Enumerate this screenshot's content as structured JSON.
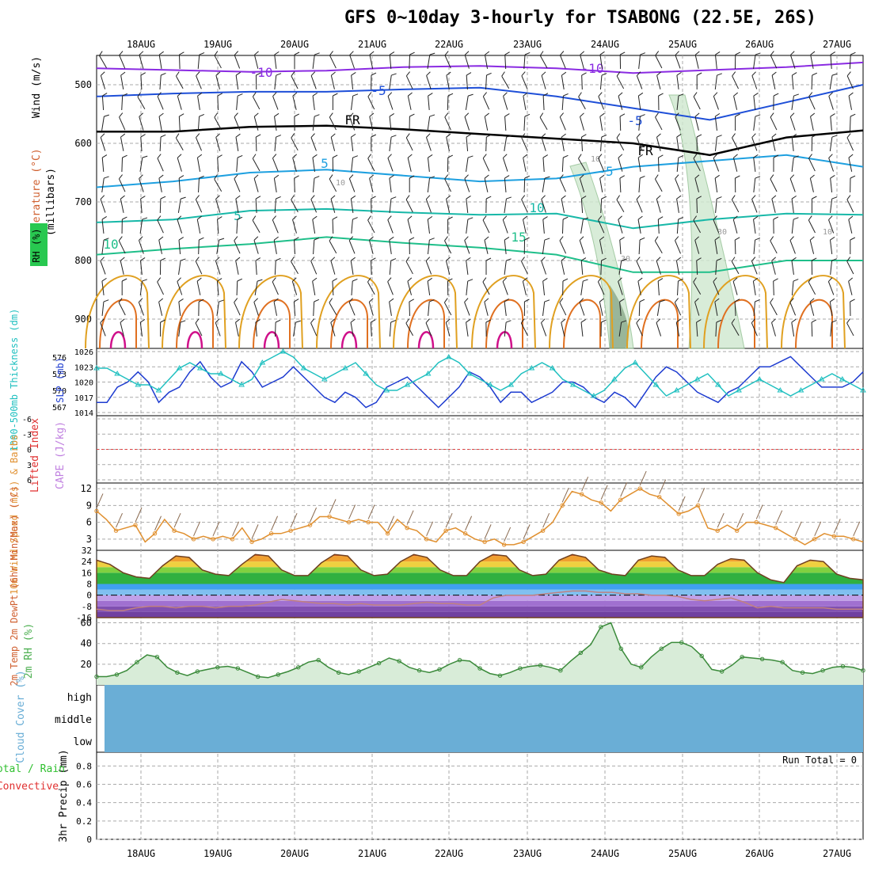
{
  "title": "GFS 0~10day 3-hourly for TSABONG (22.5E, 26S)",
  "dates": [
    "18AUG",
    "19AUG",
    "20AUG",
    "21AUG",
    "22AUG",
    "23AUG",
    "24AUG",
    "25AUG",
    "26AUG",
    "27AUG"
  ],
  "colors": {
    "grid": "#aaaaaa",
    "purple": "#8a2be2",
    "blue": "#1e4fd8",
    "cyan": "#1ea0e0",
    "teal": "#18b8a8",
    "green": "#1fbf8a",
    "orange": "#e0a020",
    "darkorange": "#e07020",
    "magenta": "#d0108a",
    "rh": "#4caf50",
    "thickness": "#20c0c0",
    "slp": "#1e3cd0",
    "wind10m": "#e09030",
    "cloud": "#6aaed6"
  },
  "chart_data": [
    {
      "type": "contour",
      "panel": "upper-air",
      "ylabel_left": [
        "RH (%)",
        "Temperature (°C)",
        "Wind (m/s)"
      ],
      "ylabel": "(millibars)",
      "yticks": [
        500,
        600,
        700,
        800,
        900
      ],
      "ylim": [
        450,
        950
      ],
      "contour_labels": [
        "-10",
        "-10",
        "-5",
        "-5",
        "FR",
        "FR",
        "-5",
        "5",
        "5",
        "10",
        "10",
        "15",
        "15",
        "10",
        "10",
        "30",
        "10",
        "10",
        "30"
      ],
      "levels_mb": {
        "minus10": [
          472,
          475,
          478,
          476,
          470,
          468,
          472,
          480,
          475,
          470,
          462
        ],
        "minus5": [
          520,
          515,
          512,
          512,
          508,
          505,
          520,
          540,
          560,
          530,
          500
        ],
        "freezing": [
          580,
          580,
          572,
          570,
          576,
          584,
          592,
          600,
          620,
          590,
          578
        ],
        "plus5": [
          675,
          665,
          650,
          645,
          655,
          665,
          660,
          640,
          630,
          620,
          640
        ],
        "plus10": [
          735,
          730,
          715,
          712,
          718,
          722,
          720,
          745,
          730,
          720,
          722
        ],
        "plus15": [
          790,
          780,
          772,
          760,
          770,
          778,
          790,
          820,
          820,
          800,
          800
        ]
      }
    },
    {
      "type": "line",
      "panel": "thickness-slp",
      "ylabel_left": "1000-500mb Thickness (dm)",
      "ylabel_right": "SLP (mb)",
      "yticks_left": [
        567,
        570,
        573,
        576
      ],
      "yticks_right": [
        1014,
        1017,
        1020,
        1023,
        1026
      ],
      "series": [
        {
          "name": "SLP (mb)",
          "values": [
            1016,
            1016,
            1019,
            1020,
            1022,
            1020,
            1016,
            1018,
            1019,
            1022,
            1024,
            1021,
            1019,
            1020,
            1024,
            1022,
            1019,
            1020,
            1021,
            1023,
            1021,
            1019,
            1017,
            1016,
            1018,
            1017,
            1015,
            1016,
            1019,
            1020,
            1021,
            1019,
            1017,
            1015,
            1017,
            1019,
            1022,
            1021,
            1019,
            1016,
            1018,
            1018,
            1016,
            1017,
            1018,
            1020,
            1020,
            1019,
            1017,
            1016,
            1018,
            1017,
            1015,
            1018,
            1021,
            1023,
            1022,
            1020,
            1018,
            1017,
            1016,
            1018,
            1019,
            1021,
            1023,
            1023,
            1024,
            1025,
            1023,
            1021,
            1019,
            1019,
            1019,
            1020,
            1022
          ]
        },
        {
          "name": "1000-500mb Thickness (dm)",
          "values": [
            574,
            574,
            573,
            572,
            571,
            571,
            570,
            572,
            574,
            575,
            574,
            573,
            573,
            572,
            571,
            572,
            575,
            576,
            577,
            576,
            574,
            573,
            572,
            573,
            574,
            575,
            573,
            571,
            570,
            570,
            571,
            572,
            573,
            575,
            576,
            575,
            573,
            572,
            571,
            570,
            571,
            573,
            574,
            575,
            574,
            572,
            571,
            570,
            569,
            570,
            572,
            574,
            575,
            573,
            571,
            569,
            570,
            571,
            572,
            573,
            571,
            569,
            570,
            571,
            572,
            571,
            570,
            569,
            570,
            571,
            572,
            573,
            572,
            571,
            570
          ]
        }
      ]
    },
    {
      "type": "line",
      "panel": "lifted-index-cape",
      "ylabel_left": "Lifted Index",
      "ylabel_right": "CAPE (J/kg)",
      "yticks": [
        "-6",
        "-3",
        "0",
        "3",
        "6"
      ],
      "ylim": [
        -6,
        6
      ],
      "reference_line": 0
    },
    {
      "type": "line",
      "panel": "10m-wind",
      "ylabel": "10m Wind Speed (m/s) & Barbs",
      "yticks": [
        3,
        6,
        9,
        12
      ],
      "ylim": [
        1,
        13
      ],
      "series": [
        {
          "name": "Speed",
          "values": [
            8,
            6.5,
            4.5,
            5,
            5.5,
            2.5,
            4,
            6.5,
            4.5,
            4,
            3,
            3.5,
            3,
            3.5,
            3,
            5,
            2.5,
            3,
            4,
            4,
            4.5,
            5,
            5.5,
            7,
            7,
            6.5,
            6,
            6.5,
            6,
            6,
            4,
            6.5,
            5,
            4.5,
            3,
            2.5,
            4.5,
            5,
            4,
            3,
            2.5,
            3,
            2,
            2,
            2.5,
            3.5,
            4.5,
            6,
            9,
            11.5,
            11,
            10,
            9.5,
            8,
            10,
            11,
            12,
            11,
            10.5,
            9,
            7.5,
            8,
            9,
            5,
            4.5,
            5.5,
            4.5,
            6,
            6,
            5.5,
            5,
            4,
            3,
            2,
            3,
            4,
            3.5,
            3.5,
            3,
            2.5
          ]
        }
      ]
    },
    {
      "type": "area",
      "panel": "2m-temp",
      "ylabel": "2m Temp 2m DewPt (6hr Min/Max) (°C)",
      "yticks": [
        "-16",
        "-8",
        "0",
        "8",
        "16",
        "24",
        "32"
      ],
      "ylim": [
        -16,
        32
      ],
      "series": [
        {
          "name": "2m Temp",
          "values": [
            25,
            22,
            16,
            13,
            12,
            21,
            28,
            27,
            18,
            15,
            14,
            22,
            29,
            28,
            18,
            14,
            14,
            23,
            29,
            28,
            18,
            14,
            15,
            24,
            29,
            27,
            18,
            14,
            14,
            24,
            29,
            28,
            18,
            14,
            15,
            25,
            29,
            27,
            18,
            15,
            14,
            25,
            28,
            27,
            18,
            14,
            14,
            22,
            26,
            25,
            16,
            11,
            9,
            21,
            25,
            24,
            15,
            12,
            11
          ]
        },
        {
          "name": "2m DewPt",
          "values": [
            -10,
            -11,
            -11,
            -9,
            -8,
            -8,
            -9,
            -8,
            -8,
            -9,
            -8,
            -8,
            -7,
            -5,
            -3,
            -4,
            -5,
            -6,
            -6,
            -7,
            -6,
            -7,
            -7,
            -7,
            -6,
            -5,
            -6,
            -6,
            -7,
            -7,
            -2,
            0,
            0,
            0,
            1,
            2,
            3,
            3,
            2,
            2,
            1,
            1,
            0,
            0,
            -1,
            -3,
            -4,
            -3,
            -2,
            -5,
            -9,
            -8,
            -9,
            -9,
            -9,
            -9,
            -10,
            -10,
            -10
          ]
        }
      ]
    },
    {
      "type": "area",
      "panel": "2m-rh",
      "ylabel": "2m RH (%)",
      "yticks": [
        20,
        40,
        60
      ],
      "ylim": [
        0,
        65
      ],
      "series": [
        {
          "name": "2m RH",
          "values": [
            8,
            8,
            10,
            14,
            22,
            29,
            27,
            17,
            12,
            9,
            13,
            15,
            17,
            18,
            16,
            12,
            8,
            7,
            10,
            13,
            17,
            22,
            24,
            17,
            12,
            10,
            13,
            17,
            21,
            26,
            23,
            17,
            14,
            12,
            15,
            20,
            24,
            23,
            16,
            11,
            9,
            12,
            16,
            18,
            19,
            17,
            14,
            23,
            31,
            39,
            56,
            60,
            35,
            20,
            17,
            27,
            35,
            41,
            41,
            37,
            28,
            15,
            13,
            19,
            27,
            26,
            25,
            24,
            22,
            14,
            12,
            11,
            14,
            17,
            18,
            17,
            14
          ]
        }
      ]
    },
    {
      "type": "area",
      "panel": "cloud-cover",
      "ylabel": "Cloud Cover (%)",
      "yticks": [
        "high",
        "middle",
        "low"
      ]
    },
    {
      "type": "bar",
      "panel": "precip",
      "ylabel": "3hr Precip (mm)",
      "ylabel_left": [
        "Total / Rain",
        "Convective"
      ],
      "yticks": [
        0,
        0.2,
        0.4,
        0.6,
        0.8
      ],
      "ylim": [
        0,
        0.95
      ],
      "annotation": "Run Total = 0",
      "values": []
    }
  ]
}
